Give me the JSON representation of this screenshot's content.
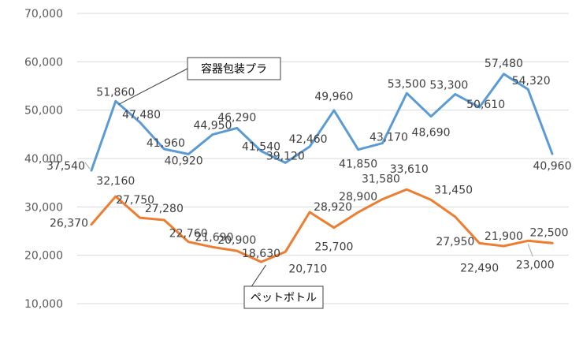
{
  "chart_data": {
    "type": "line",
    "title": "",
    "xlabel": "",
    "ylabel": "",
    "ylim": [
      10000,
      70000
    ],
    "yticks": [
      "10,000",
      "20,000",
      "30,000",
      "40,000",
      "50,000",
      "60,000",
      "70,000"
    ],
    "grid": "horizontal",
    "legend": "none",
    "series": [
      {
        "name": "容器包装プラ",
        "color": "#5B9BD5",
        "values": [
          37540,
          51860,
          47480,
          41960,
          40920,
          44950,
          46290,
          41540,
          39120,
          42460,
          49960,
          41850,
          43170,
          53500,
          48690,
          53300,
          50610,
          57480,
          54320,
          40960
        ],
        "labels": [
          "37,540",
          "51,860",
          "47,480",
          "41,960",
          "40,920",
          "44,950",
          "46,290",
          "41,540",
          "39,120",
          "42,460",
          "49,960",
          "41,850",
          "43,170",
          "53,500",
          "48,690",
          "53,300",
          "50,610",
          "57,480",
          "54,320",
          "40,960"
        ]
      },
      {
        "name": "ペットボトル",
        "color": "#ED7D31",
        "values": [
          26370,
          32160,
          27750,
          27280,
          22760,
          21690,
          20900,
          18630,
          20710,
          28920,
          25700,
          28900,
          31580,
          33610,
          31450,
          27950,
          22490,
          21900,
          23000,
          22500
        ],
        "labels": [
          "26,370",
          "32,160",
          "27,750",
          "27,280",
          "22,760",
          "21,690",
          "20,900",
          "18,630",
          "20,710",
          "28,920",
          "25,700",
          "28,900",
          "31,580",
          "33,610",
          "31,450",
          "27,950",
          "22,490",
          "21,900",
          "23,000",
          "22,500"
        ]
      }
    ]
  }
}
